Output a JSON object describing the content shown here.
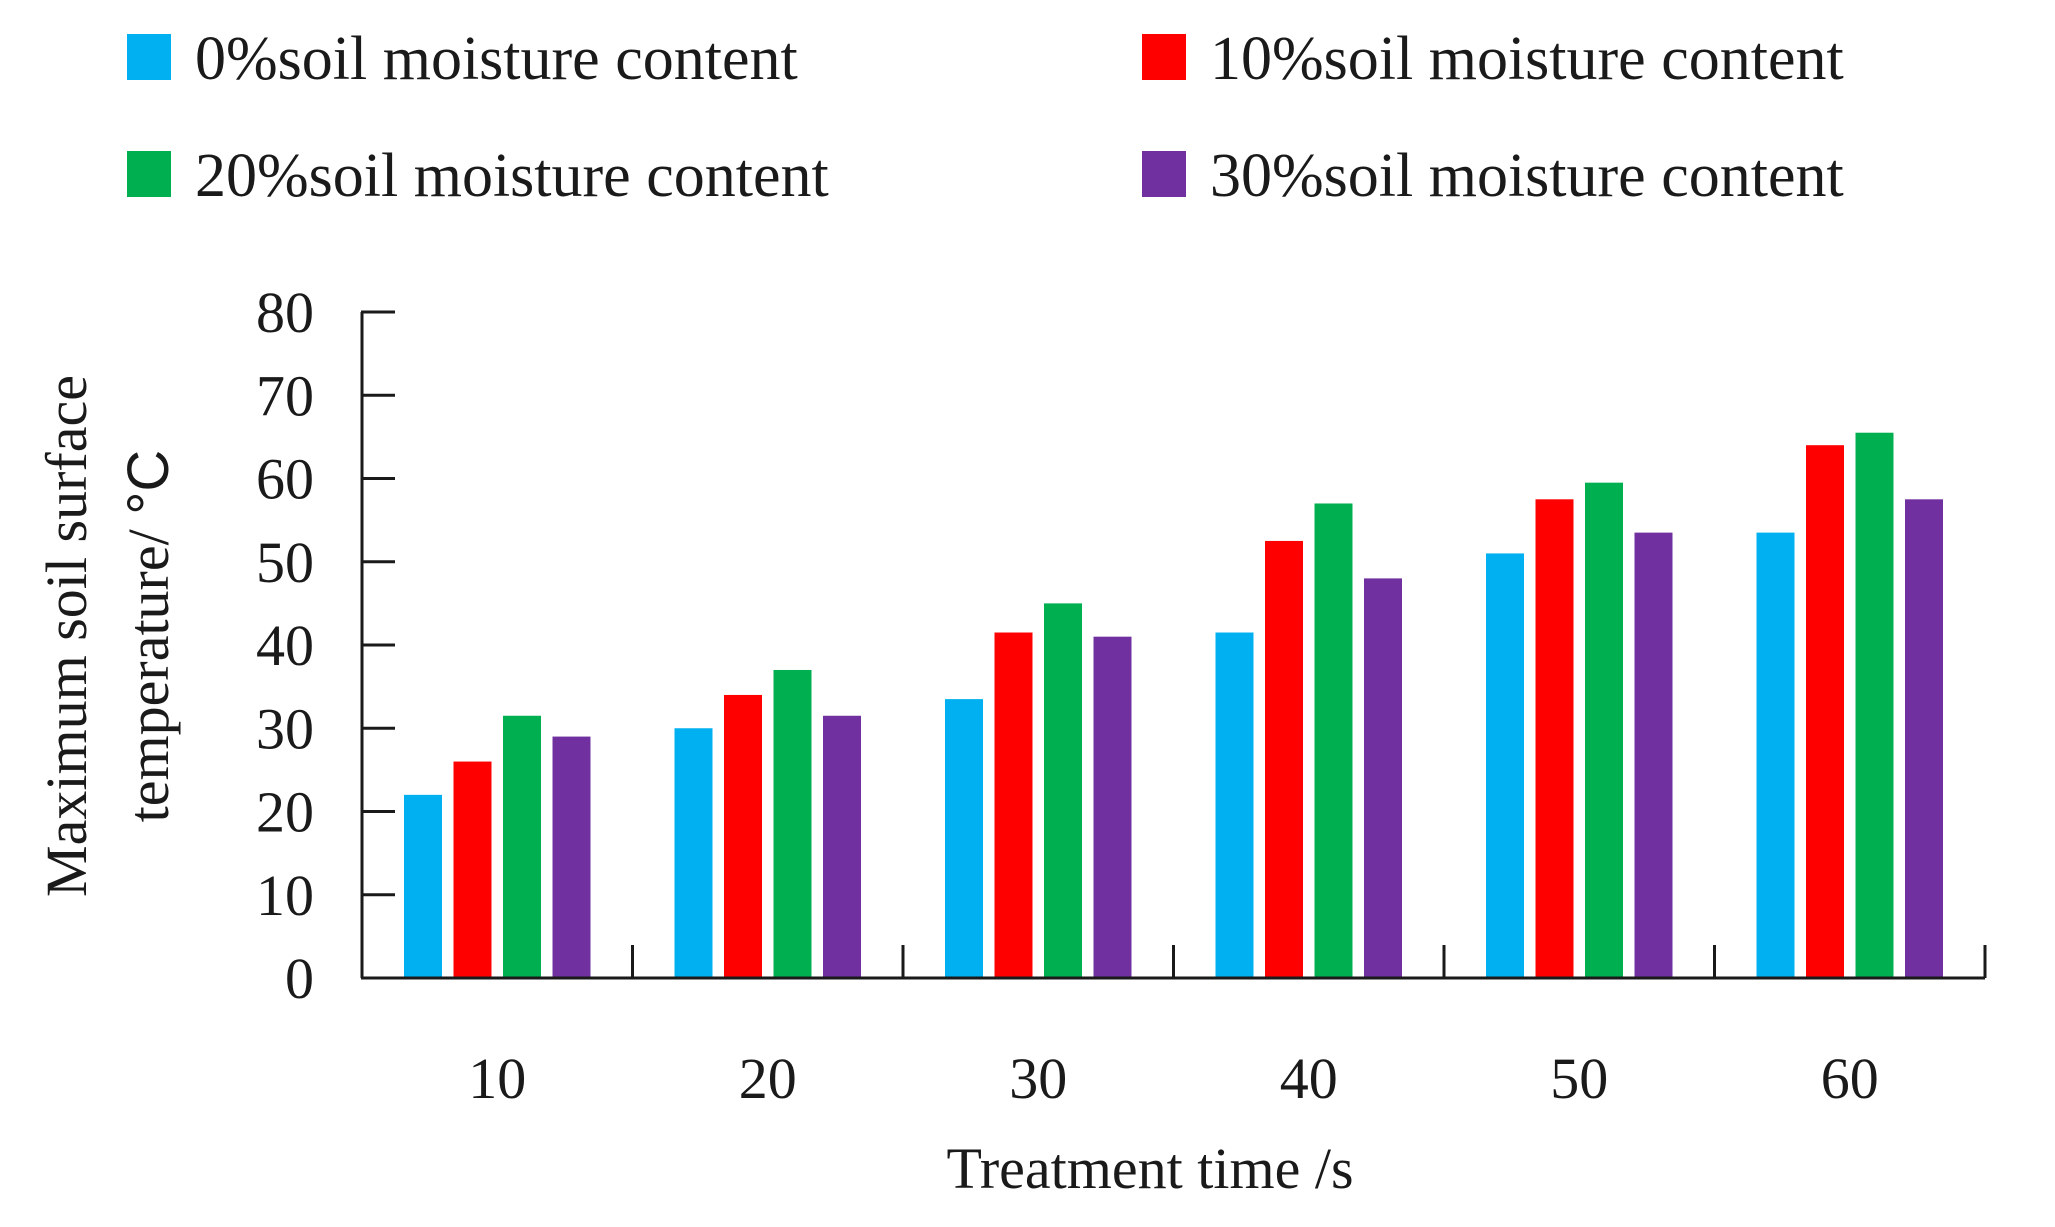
{
  "chart_data": {
    "type": "bar",
    "title": "",
    "xlabel": "Treatment time /s",
    "ylabel_line1": "Maximum soil surface",
    "ylabel_line2_prefix": "temperature/ ",
    "ylabel_line2_unit": "°C",
    "categories": [
      "10",
      "20",
      "30",
      "40",
      "50",
      "60"
    ],
    "ylim": [
      0,
      80
    ],
    "yticks": [
      0,
      10,
      20,
      30,
      40,
      50,
      60,
      70,
      80
    ],
    "legend_position": "top",
    "grid": false,
    "series": [
      {
        "name": "0%soil moisture content",
        "color": "#00b0f0",
        "values": [
          22,
          30,
          33.5,
          41.5,
          51,
          53.5
        ]
      },
      {
        "name": "10%soil moisture content",
        "color": "#ff0000",
        "values": [
          26,
          34,
          41.5,
          52.5,
          57.5,
          64
        ]
      },
      {
        "name": "20%soil moisture content",
        "color": "#00b050",
        "values": [
          31.5,
          37,
          45,
          57,
          59.5,
          65.5
        ]
      },
      {
        "name": "30%soil moisture content",
        "color": "#7030a0",
        "values": [
          29,
          31.5,
          41,
          48,
          53.5,
          57.5
        ]
      }
    ]
  }
}
